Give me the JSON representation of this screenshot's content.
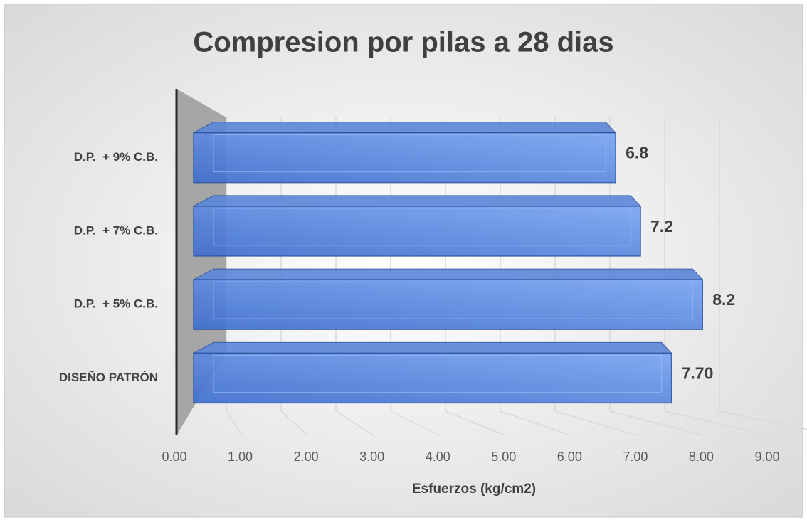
{
  "chart_data": {
    "type": "bar",
    "orientation": "horizontal",
    "title": "Compresion por pilas a 28 dias",
    "x_label": "Esfuerzos (kg/cm2)",
    "categories": [
      "DISEÑO PATRÓN",
      "D.P.  + 5% C.B.",
      "D.P.  + 7% C.B.",
      "D.P.  + 9% C.B."
    ],
    "values": [
      7.7,
      8.2,
      7.2,
      6.8
    ],
    "value_labels": [
      "7.70",
      "8.2",
      "7.2",
      "6.8"
    ],
    "color": "#4f7fd9",
    "xlim": [
      0,
      9
    ],
    "xticks": [
      {
        "value": 0,
        "label": "0.00"
      },
      {
        "value": 1,
        "label": "1.00"
      },
      {
        "value": 2,
        "label": "2.00"
      },
      {
        "value": 3,
        "label": "3.00"
      },
      {
        "value": 4,
        "label": "4.00"
      },
      {
        "value": 5,
        "label": "5.00"
      },
      {
        "value": 6,
        "label": "6.00"
      },
      {
        "value": 7,
        "label": "7.00"
      },
      {
        "value": 8,
        "label": "8.00"
      },
      {
        "value": 9,
        "label": "9.00"
      }
    ],
    "grid": true
  }
}
